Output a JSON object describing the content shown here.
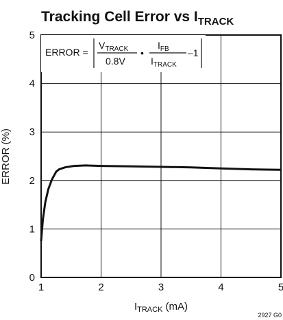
{
  "chart_data": {
    "type": "line",
    "title": "Tracking Cell Error vs I",
    "title_sub": "TRACK",
    "xlabel": "I",
    "xlabel_sub": "TRACK",
    "xlabel_unit": " (mA)",
    "ylabel": "ERROR (%)",
    "xlim": [
      1,
      5
    ],
    "ylim": [
      0,
      5
    ],
    "xticks": [
      "1",
      "2",
      "3",
      "4",
      "5"
    ],
    "yticks": [
      "0",
      "1",
      "2",
      "3",
      "4",
      "5"
    ],
    "grid": true,
    "series": [
      {
        "x": [
          1.0,
          1.03,
          1.07,
          1.12,
          1.18,
          1.25,
          1.3,
          1.4,
          1.55,
          1.75,
          2.0,
          2.5,
          3.0,
          3.5,
          4.0,
          4.5,
          5.0
        ],
        "y": [
          0.75,
          1.2,
          1.55,
          1.82,
          2.02,
          2.18,
          2.23,
          2.27,
          2.3,
          2.31,
          2.3,
          2.29,
          2.28,
          2.27,
          2.25,
          2.23,
          2.22
        ],
        "color": "#111111"
      }
    ],
    "annotation": {
      "lhs": "ERROR = ",
      "num1": "V",
      "num1_sub": "TRACK",
      "den1": "0.8V",
      "dot": "•",
      "num2": "I",
      "num2_sub": "FB",
      "den2": "I",
      "den2_sub": "TRACK",
      "tail": "–1"
    },
    "figure_id": "2927 G0"
  }
}
